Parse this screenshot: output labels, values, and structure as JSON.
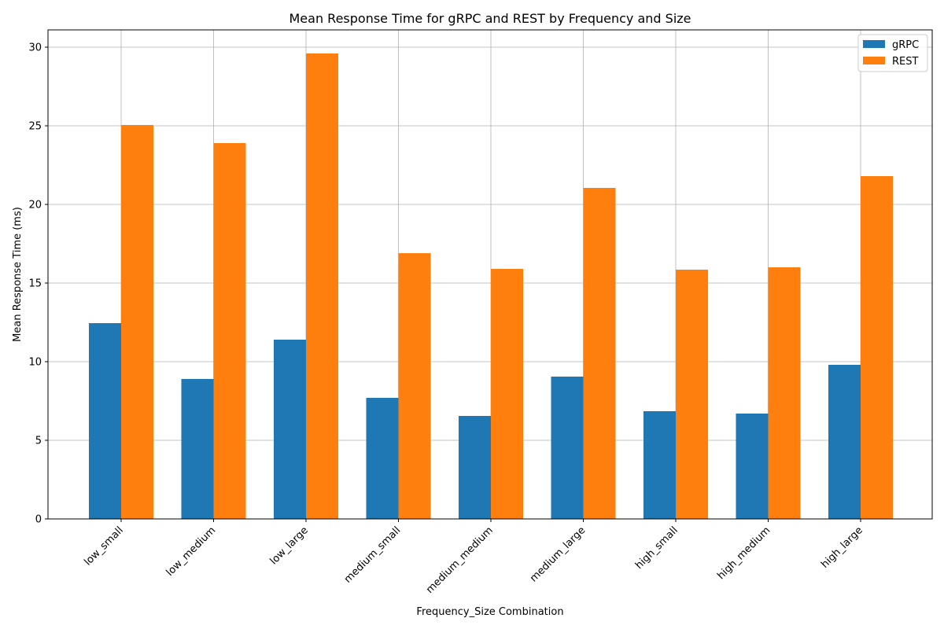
{
  "chart_data": {
    "type": "bar",
    "title": "Mean Response Time for gRPC and REST by Frequency and Size",
    "xlabel": "Frequency_Size Combination",
    "ylabel": "Mean Response Time (ms)",
    "categories": [
      "low_small",
      "low_medium",
      "low_large",
      "medium_small",
      "medium_medium",
      "medium_large",
      "high_small",
      "high_medium",
      "high_large"
    ],
    "series": [
      {
        "name": "gRPC",
        "color": "#1f77b4",
        "values": [
          12.45,
          8.9,
          11.4,
          7.7,
          6.55,
          9.05,
          6.85,
          6.7,
          9.8
        ]
      },
      {
        "name": "REST",
        "color": "#ff7f0e",
        "values": [
          25.05,
          23.9,
          29.6,
          16.9,
          15.9,
          21.05,
          15.85,
          16.0,
          21.8
        ]
      }
    ],
    "ylim": [
      0,
      31.1
    ],
    "yticks": [
      0,
      5,
      10,
      15,
      20,
      25,
      30
    ],
    "grid": true,
    "legend_position": "top-right"
  }
}
